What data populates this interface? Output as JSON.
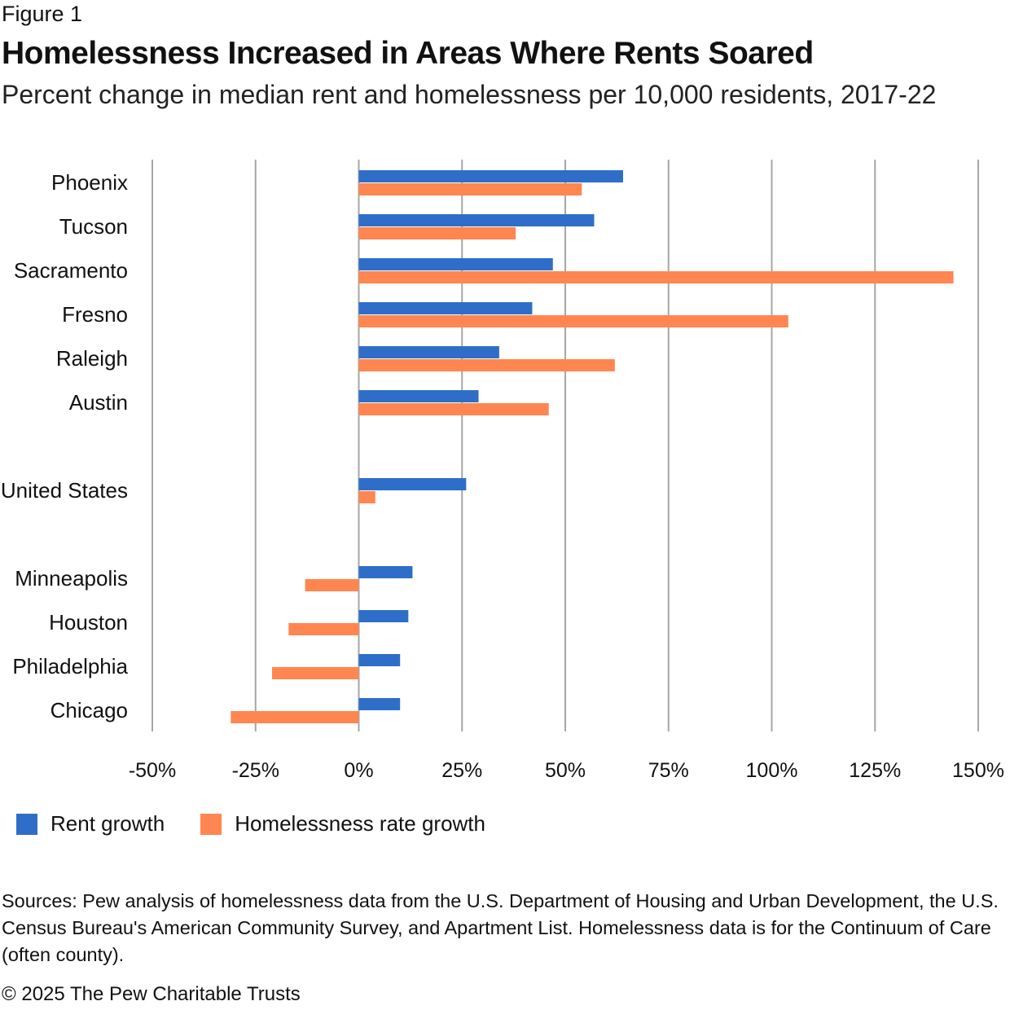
{
  "figure_label": "Figure 1",
  "title": "Homelessness Increased in Areas Where Rents Soared",
  "subtitle": "Percent change in median rent and homelessness per 10,000 residents, 2017-22",
  "colors": {
    "rent": "#2e6ec8",
    "homeless": "#ff8650",
    "grid": "#a6a6a6"
  },
  "chart_data": {
    "type": "bar",
    "orientation": "horizontal",
    "categories": [
      "Phoenix",
      "Tucson",
      "Sacramento",
      "Fresno",
      "Raleigh",
      "Austin",
      "United States",
      "Minneapolis",
      "Houston",
      "Philadelphia",
      "Chicago"
    ],
    "series": [
      {
        "name": "Rent growth",
        "values": [
          64,
          57,
          47,
          42,
          34,
          29,
          26,
          13,
          12,
          10,
          10
        ]
      },
      {
        "name": "Homelessness rate growth",
        "values": [
          54,
          38,
          144,
          104,
          62,
          46,
          4,
          -13,
          -17,
          -21,
          -31
        ]
      }
    ],
    "xlim": [
      -50,
      150
    ],
    "x_ticks": [
      -50,
      -25,
      0,
      25,
      50,
      75,
      100,
      125,
      150
    ],
    "x_tick_labels": [
      "-50%",
      "-25%",
      "0%",
      "25%",
      "50%",
      "75%",
      "100%",
      "125%",
      "150%"
    ],
    "grid": true,
    "legend_position": "bottom-left"
  },
  "legend": {
    "items": [
      {
        "label": "Rent growth",
        "color": "#2e6ec8"
      },
      {
        "label": "Homelessness rate growth",
        "color": "#ff8650"
      }
    ]
  },
  "source": "Sources: Pew analysis of homelessness data from the U.S. Department of Housing and Urban Development, the U.S. Census Bureau's American Community Survey, and Apartment List. Homelessness data is for the Continuum of Care (often county).",
  "copyright": "© 2025 The Pew Charitable Trusts"
}
